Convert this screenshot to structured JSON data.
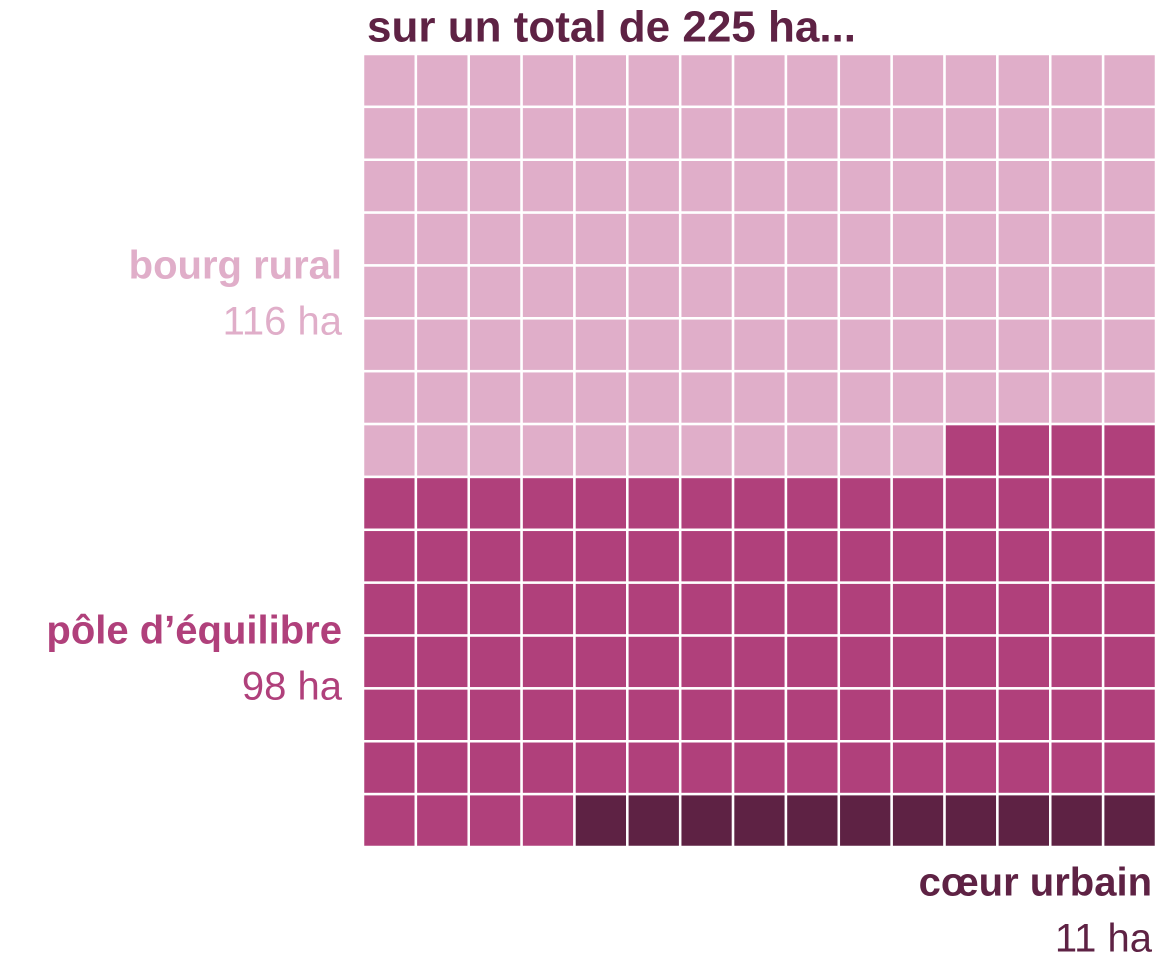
{
  "chart_data": {
    "type": "waffle",
    "title": "sur un total de 225 ha...",
    "series": [
      {
        "name": "bourg rural",
        "color": "#e0aec9",
        "values": [
          116
        ],
        "value_labels": [
          "116 ha"
        ]
      },
      {
        "name": "pôle d’équilibre",
        "color": "#b0407b",
        "values": [
          98
        ],
        "value_labels": [
          "98 ha"
        ]
      },
      {
        "name": "cœur urbain",
        "color": "#5e2244",
        "values": [
          11
        ],
        "value_labels": [
          "11 ha"
        ]
      }
    ],
    "title_color": "#5e2244"
  }
}
